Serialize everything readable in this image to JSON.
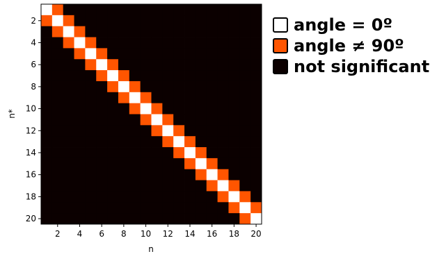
{
  "chart_data": {
    "type": "heatmap",
    "xlabel": "n",
    "ylabel": "n*",
    "x_values": [
      1,
      2,
      3,
      4,
      5,
      6,
      7,
      8,
      9,
      10,
      11,
      12,
      13,
      14,
      15,
      16,
      17,
      18,
      19,
      20
    ],
    "y_values": [
      1,
      2,
      3,
      4,
      5,
      6,
      7,
      8,
      9,
      10,
      11,
      12,
      13,
      14,
      15,
      16,
      17,
      18,
      19,
      20
    ],
    "x_ticks": [
      2,
      4,
      6,
      8,
      10,
      12,
      14,
      16,
      18,
      20
    ],
    "y_ticks": [
      2,
      4,
      6,
      8,
      10,
      12,
      14,
      16,
      18,
      20
    ],
    "categories": [
      {
        "key": "zero",
        "label": "angle = 0º",
        "color": "#ffffff"
      },
      {
        "key": "nonorth",
        "label": "angle ≠ 90º",
        "color": "#ff5500"
      },
      {
        "key": "ns",
        "label": "not significant",
        "color": "#0b0000"
      }
    ],
    "rule": "cell(n*, n) = 'zero' if n == n*; 'nonorth' if |n - n*| == 1; otherwise 'ns'",
    "legend_position": "right"
  }
}
